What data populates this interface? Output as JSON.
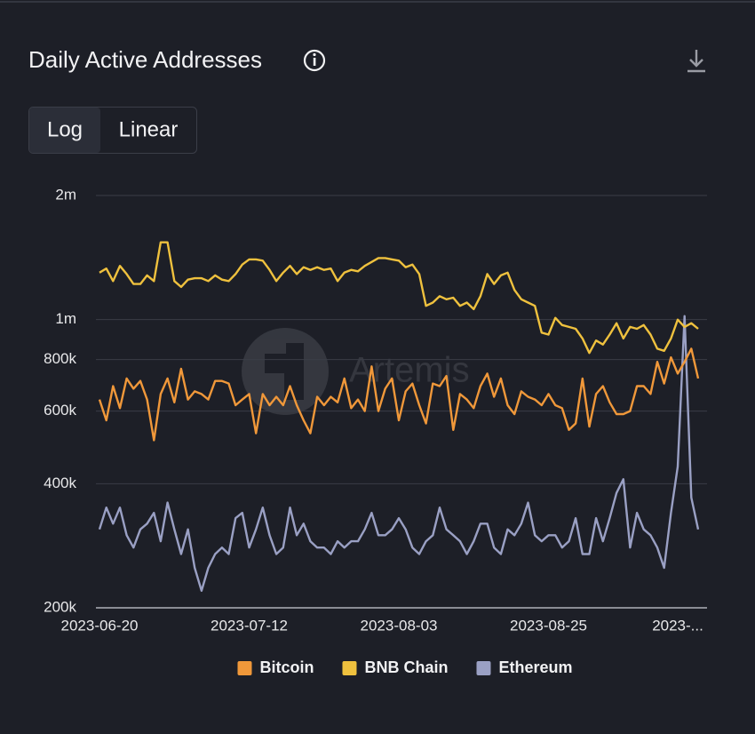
{
  "chart_data": {
    "type": "line",
    "title": "Daily Active Addresses",
    "scale_options": [
      "Log",
      "Linear"
    ],
    "log_scale": true,
    "watermark": "Artemis",
    "grid": true,
    "legend": "bottom",
    "x": [
      "2023-06-20",
      "2023-06-21",
      "2023-06-22",
      "2023-06-23",
      "2023-06-24",
      "2023-06-25",
      "2023-06-26",
      "2023-06-27",
      "2023-06-28",
      "2023-06-29",
      "2023-06-30",
      "2023-07-01",
      "2023-07-02",
      "2023-07-03",
      "2023-07-04",
      "2023-07-05",
      "2023-07-06",
      "2023-07-07",
      "2023-07-08",
      "2023-07-09",
      "2023-07-10",
      "2023-07-11",
      "2023-07-12",
      "2023-07-13",
      "2023-07-14",
      "2023-07-15",
      "2023-07-16",
      "2023-07-17",
      "2023-07-18",
      "2023-07-19",
      "2023-07-20",
      "2023-07-21",
      "2023-07-22",
      "2023-07-23",
      "2023-07-24",
      "2023-07-25",
      "2023-07-26",
      "2023-07-27",
      "2023-07-28",
      "2023-07-29",
      "2023-07-30",
      "2023-07-31",
      "2023-08-01",
      "2023-08-02",
      "2023-08-03",
      "2023-08-04",
      "2023-08-05",
      "2023-08-06",
      "2023-08-07",
      "2023-08-08",
      "2023-08-09",
      "2023-08-10",
      "2023-08-11",
      "2023-08-12",
      "2023-08-13",
      "2023-08-14",
      "2023-08-15",
      "2023-08-16",
      "2023-08-17",
      "2023-08-18",
      "2023-08-19",
      "2023-08-20",
      "2023-08-21",
      "2023-08-22",
      "2023-08-23",
      "2023-08-24",
      "2023-08-25",
      "2023-08-26",
      "2023-08-27",
      "2023-08-28",
      "2023-08-29",
      "2023-08-30",
      "2023-08-31",
      "2023-09-01",
      "2023-09-02",
      "2023-09-03",
      "2023-09-04",
      "2023-09-05",
      "2023-09-06",
      "2023-09-07",
      "2023-09-08",
      "2023-09-09",
      "2023-09-10",
      "2023-09-11",
      "2023-09-12",
      "2023-09-13",
      "2023-09-14",
      "2023-09-15",
      "2023-09-16"
    ],
    "series": [
      {
        "name": "Bitcoin",
        "color": "#f0983a",
        "values": [
          640000,
          570000,
          690000,
          610000,
          720000,
          680000,
          710000,
          640000,
          510000,
          660000,
          720000,
          630000,
          760000,
          640000,
          670000,
          660000,
          640000,
          710000,
          710000,
          700000,
          620000,
          640000,
          660000,
          530000,
          660000,
          620000,
          650000,
          620000,
          690000,
          620000,
          570000,
          530000,
          650000,
          620000,
          650000,
          630000,
          720000,
          610000,
          640000,
          600000,
          770000,
          600000,
          680000,
          720000,
          570000,
          670000,
          700000,
          620000,
          560000,
          700000,
          690000,
          730000,
          540000,
          660000,
          640000,
          610000,
          690000,
          740000,
          650000,
          720000,
          620000,
          590000,
          670000,
          650000,
          640000,
          620000,
          660000,
          620000,
          610000,
          540000,
          560000,
          720000,
          550000,
          660000,
          690000,
          630000,
          590000,
          590000,
          600000,
          690000,
          690000,
          660000,
          790000,
          700000,
          810000,
          740000,
          790000,
          850000,
          720000
        ]
      },
      {
        "name": "BNB Chain",
        "color": "#efc13e",
        "values": [
          1300000,
          1330000,
          1240000,
          1350000,
          1290000,
          1220000,
          1220000,
          1280000,
          1240000,
          1540000,
          1540000,
          1240000,
          1200000,
          1250000,
          1260000,
          1260000,
          1240000,
          1280000,
          1250000,
          1240000,
          1290000,
          1360000,
          1400000,
          1400000,
          1390000,
          1320000,
          1240000,
          1300000,
          1350000,
          1290000,
          1340000,
          1320000,
          1340000,
          1320000,
          1330000,
          1240000,
          1300000,
          1320000,
          1310000,
          1350000,
          1380000,
          1410000,
          1410000,
          1400000,
          1390000,
          1340000,
          1360000,
          1290000,
          1080000,
          1100000,
          1140000,
          1120000,
          1130000,
          1080000,
          1100000,
          1060000,
          1140000,
          1290000,
          1220000,
          1280000,
          1300000,
          1180000,
          1120000,
          1100000,
          1080000,
          930000,
          920000,
          1010000,
          970000,
          960000,
          950000,
          900000,
          830000,
          890000,
          870000,
          920000,
          980000,
          900000,
          960000,
          950000,
          970000,
          920000,
          850000,
          840000,
          900000,
          1000000,
          960000,
          980000,
          950000
        ]
      },
      {
        "name": "Ethereum",
        "color": "#9aa0c4",
        "values": [
          310000,
          350000,
          320000,
          350000,
          300000,
          280000,
          310000,
          320000,
          340000,
          290000,
          360000,
          310000,
          270000,
          310000,
          250000,
          220000,
          250000,
          270000,
          280000,
          270000,
          330000,
          340000,
          280000,
          310000,
          350000,
          300000,
          270000,
          280000,
          350000,
          300000,
          320000,
          290000,
          280000,
          280000,
          270000,
          290000,
          280000,
          290000,
          290000,
          310000,
          340000,
          300000,
          300000,
          310000,
          330000,
          310000,
          280000,
          270000,
          290000,
          300000,
          350000,
          310000,
          300000,
          290000,
          270000,
          290000,
          320000,
          320000,
          280000,
          270000,
          310000,
          300000,
          320000,
          360000,
          300000,
          290000,
          300000,
          300000,
          280000,
          290000,
          330000,
          270000,
          270000,
          330000,
          290000,
          330000,
          380000,
          410000,
          280000,
          340000,
          310000,
          300000,
          280000,
          250000,
          340000,
          440000,
          1020000,
          370000,
          310000
        ]
      }
    ],
    "ylim": [
      200000,
      2000000
    ],
    "yticks": [
      {
        "value": 200000,
        "label": "200k"
      },
      {
        "value": 400000,
        "label": "400k"
      },
      {
        "value": 600000,
        "label": "600k"
      },
      {
        "value": 800000,
        "label": "800k"
      },
      {
        "value": 1000000,
        "label": "1m"
      },
      {
        "value": 2000000,
        "label": "2m"
      }
    ],
    "xticks": [
      "2023-06-20",
      "2023-07-12",
      "2023-08-03",
      "2023-08-25",
      {
        "value": "2023-09-13",
        "label": "2023-..."
      }
    ]
  }
}
